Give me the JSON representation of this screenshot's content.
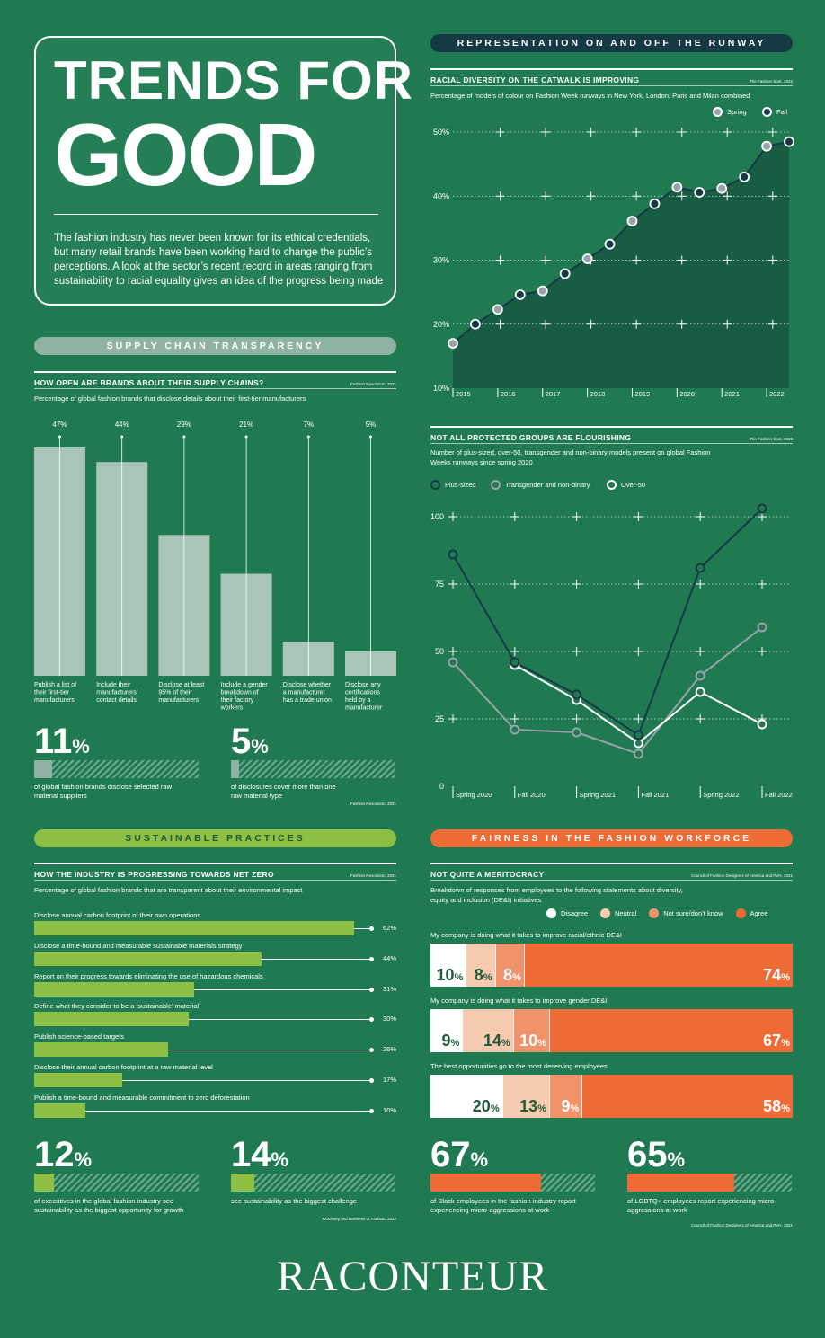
{
  "title": {
    "line1": "TRENDS FOR",
    "line2": "GOOD",
    "intro": "The fashion industry has never been known for its ethical credentials, but many retail brands have been working hard to change the public’s perceptions. A look at the sector’s recent record in areas ranging from sustainability to racial equality gives an idea of the progress being made"
  },
  "sections": {
    "supply": "SUPPLY CHAIN TRANSPARENCY",
    "representation": "REPRESENTATION ON AND OFF THE RUNWAY",
    "sustainable": "SUSTAINABLE PRACTICES",
    "fairness": "FAIRNESS IN THE FASHION WORKFORCE"
  },
  "colors": {
    "background": "#1f7a52",
    "supply_pill": "#8fb3a2",
    "sustain_pill": "#8ebf45",
    "fair_pill": "#ee6b35",
    "navy": "#153a44",
    "orange": "#ee6b35"
  },
  "racial": {
    "title": "RACIAL DIVERSITY ON THE CATWALK IS IMPROVING",
    "source": "The Fashion Spot, 2022",
    "subtitle": "Percentage of models of colour on Fashion Week runways in New York, London, Paris and Milan combined",
    "legend_spring": "Spring",
    "legend_fall": "Fall"
  },
  "groups": {
    "title": "NOT ALL PROTECTED GROUPS ARE FLOURISHING",
    "source": "The Fashion Spot, 2022",
    "subtitle": "Number of plus-sized, over-50, transgender and non-binary models present on global Fashion Weeks runways since spring 2020",
    "legend": [
      "Plus-sized",
      "Transgender and non-binary",
      "Over-50"
    ]
  },
  "supply_chain": {
    "title": "HOW OPEN ARE BRANDS ABOUT THEIR SUPPLY CHAINS?",
    "source": "Fashion Revolution, 2021",
    "subtitle": "Percentage of global fashion brands that disclose details about their first-tier manufacturers",
    "stat1_value": "11",
    "stat1_text": "of global fashion brands disclose selected raw material suppliers",
    "stat2_value": "5",
    "stat2_text": "of disclosures cover more than one raw material type",
    "stat_source": "Fashion Revolution, 2021"
  },
  "net_zero": {
    "title": "HOW THE INDUSTRY IS PROGRESSING TOWARDS NET ZERO",
    "source": "Fashion Revolution, 2021",
    "subtitle": "Percentage of global fashion brands that are transparent about their environmental impact",
    "stat1_value": "12",
    "stat1_text": "of executives in the global fashion industry see sustainability as the biggest opportunity for growth",
    "stat2_value": "14",
    "stat2_text": "see sustainability as the biggest challenge",
    "stat_source": "McKinsey and Business of Fashion, 2022"
  },
  "meritocracy": {
    "title": "NOT QUITE A MERITOCRACY",
    "source": "Council of Fashion Designers of America and PVH, 2021",
    "subtitle": "Breakdown of responses from employees to the following statements about diversity, equity and inclusion (DE&I) initiatives",
    "legend": [
      "Disagree",
      "Neutral",
      "Not sure/don’t know",
      "Agree"
    ],
    "legend_colors": [
      "#ffffff",
      "#f7cbb0",
      "#f0926a",
      "#ee6b35"
    ],
    "stat1_value": "67",
    "stat1_text": "of Black employees in the fashion industry report experiencing micro-aggressions at work",
    "stat2_value": "65",
    "stat2_text": "of LGBTQ+ employees report experiencing micro-aggressions at work",
    "stat_source": "Council of Fashion Designers of America and PVH, 2021"
  },
  "logo": "RACONTEUR",
  "chart_data": [
    {
      "id": "racial-diversity",
      "type": "area",
      "x": [
        "2015 Spring",
        "2015 Fall",
        "2016 Spring",
        "2016 Fall",
        "2017 Spring",
        "2017 Fall",
        "2018 Spring",
        "2018 Fall",
        "2019 Spring",
        "2019 Fall",
        "2020 Spring",
        "2020 Fall",
        "2021 Spring",
        "2021 Fall",
        "2022 Spring",
        "2022 Fall"
      ],
      "values": [
        17,
        20,
        22.3,
        24.6,
        25.2,
        27.9,
        30.2,
        32.5,
        36.1,
        38.8,
        41.4,
        40.6,
        41.2,
        43,
        47.8,
        48.5
      ],
      "x_tick_labels": [
        "2015",
        "2016",
        "2017",
        "2018",
        "2019",
        "2020",
        "2021",
        "2022"
      ],
      "ylim": [
        10,
        50
      ],
      "y_ticks": [
        10,
        20,
        30,
        40,
        50
      ],
      "y_tick_labels": [
        "10%",
        "20%",
        "30%",
        "40%",
        "50%"
      ]
    },
    {
      "id": "protected-groups",
      "type": "line",
      "categories": [
        "Spring 2020",
        "Fall 2020",
        "Spring 2021",
        "Fall 2021",
        "Spring 2022",
        "Fall 2022"
      ],
      "series": [
        {
          "name": "Plus-sized",
          "values": [
            86,
            46,
            34,
            19,
            81,
            103
          ]
        },
        {
          "name": "Transgender and non-binary",
          "values": [
            46,
            21,
            20,
            12,
            41,
            59
          ]
        },
        {
          "name": "Over-50",
          "values": [
            null,
            45,
            32,
            16,
            35,
            23
          ]
        }
      ],
      "ylim": [
        0,
        100
      ],
      "y_ticks": [
        0,
        25,
        50,
        75,
        100
      ]
    },
    {
      "id": "supply-chains",
      "type": "bar",
      "categories": [
        "Publish a list of their first-tier manufacturers",
        "Include their manufacturers’ contact details",
        "Disclose at least 95% of their manufacturers",
        "Include a gender breakdown of their factory workers",
        "Disclose whether a manufacturer has a trade union",
        "Disclose any certifications held by a manufacturer"
      ],
      "values": [
        47,
        44,
        29,
        21,
        7,
        5
      ],
      "value_labels": [
        "47%",
        "44%",
        "29%",
        "21%",
        "7%",
        "5%"
      ],
      "ylim": [
        0,
        50
      ]
    },
    {
      "id": "net-zero",
      "type": "bar",
      "orientation": "horizontal",
      "categories": [
        "Disclose annual carbon footprint of their own operations",
        "Disclose a time-bound and measurable sustainable materials strategy",
        "Report on their progress towards eliminating the use of hazardous chemicals",
        "Define what they consider to be a ‘sustainable’ material",
        "Publish science-based targets",
        "Disclose their annual carbon footprint at a raw material level",
        "Publish a time-bound and measurable commitment to zero deforestation"
      ],
      "values": [
        62,
        44,
        31,
        30,
        26,
        17,
        10
      ],
      "value_labels": [
        "62%",
        "44%",
        "31%",
        "30%",
        "26%",
        "17%",
        "10%"
      ]
    },
    {
      "id": "meritocracy",
      "type": "bar",
      "stacked": true,
      "orientation": "horizontal",
      "categories": [
        "My company is doing what it takes to improve racial/ethnic DE&I",
        "My company is doing what it takes to improve gender DE&I",
        "The best opportunities go to the most deserving employees"
      ],
      "series": [
        {
          "name": "Disagree",
          "values": [
            10,
            9,
            20
          ]
        },
        {
          "name": "Neutral",
          "values": [
            8,
            14,
            13
          ]
        },
        {
          "name": "Not sure/don’t know",
          "values": [
            8,
            10,
            9
          ]
        },
        {
          "name": "Agree",
          "values": [
            74,
            67,
            58
          ]
        }
      ]
    },
    {
      "id": "stat-bars",
      "type": "bar",
      "orientation": "horizontal",
      "categories": [
        "raw material suppliers",
        "multi-material disclosures",
        "sustainability opportunity",
        "sustainability challenge",
        "Black employees micro-aggressions",
        "LGBTQ+ employees micro-aggressions"
      ],
      "values": [
        11,
        5,
        12,
        14,
        67,
        65
      ]
    }
  ]
}
